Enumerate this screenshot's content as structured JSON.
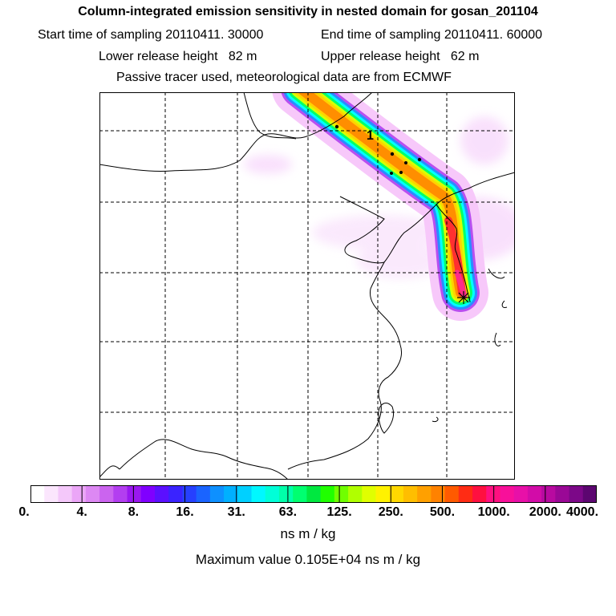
{
  "header": {
    "title": "Column-integrated emission sensitivity in nested domain for gosan_201104",
    "start_label": "Start time of sampling",
    "start_value": "20110411. 30000",
    "end_label": "End time of sampling",
    "end_value": "20110411. 60000",
    "lower_label": "Lower release height",
    "lower_value": "82 m",
    "upper_label": "Upper release height",
    "upper_value": "62 m",
    "tracer_note": "Passive tracer used, meteorological data are from ECMWF"
  },
  "map": {
    "age_label": "1",
    "receptor_marker": "star-icon",
    "plume_colors": [
      "#f4b8f8",
      "#8a2be2",
      "#1e90ff",
      "#00ffff",
      "#00ff66",
      "#c8ff00",
      "#ffd400",
      "#ff8c00",
      "#ff3c3c",
      "#ff69b4"
    ]
  },
  "colorbar": {
    "colors": [
      "#ffffff",
      "#fbe6fd",
      "#f4c8fa",
      "#eba6f7",
      "#dd88f3",
      "#cb64ef",
      "#b33ef0",
      "#9a18f0",
      "#8000ff",
      "#5b10ff",
      "#3a23ff",
      "#2640ff",
      "#1a64ff",
      "#0e90ff",
      "#00b0ff",
      "#00d0ff",
      "#00f8ff",
      "#00ffd8",
      "#00ffaa",
      "#00ff70",
      "#00e840",
      "#20ff00",
      "#70ff00",
      "#b0ff00",
      "#e0ff00",
      "#fff200",
      "#ffd800",
      "#ffbe00",
      "#ffa000",
      "#ff8200",
      "#ff5a00",
      "#ff2c14",
      "#ff1040",
      "#ff1080",
      "#f8109a",
      "#e810a8",
      "#d20ca8",
      "#b80aa0",
      "#9a0896",
      "#7c0888",
      "#5c0670"
    ],
    "ticks": [
      "0.",
      "4.",
      "8.",
      "16.",
      "31.",
      "63.",
      "125.",
      "250.",
      "500.",
      "1000.",
      "2000.",
      "4000."
    ],
    "unit": "ns m / kg",
    "max_label": "Maximum value  0.105E+04 ns m / kg"
  }
}
